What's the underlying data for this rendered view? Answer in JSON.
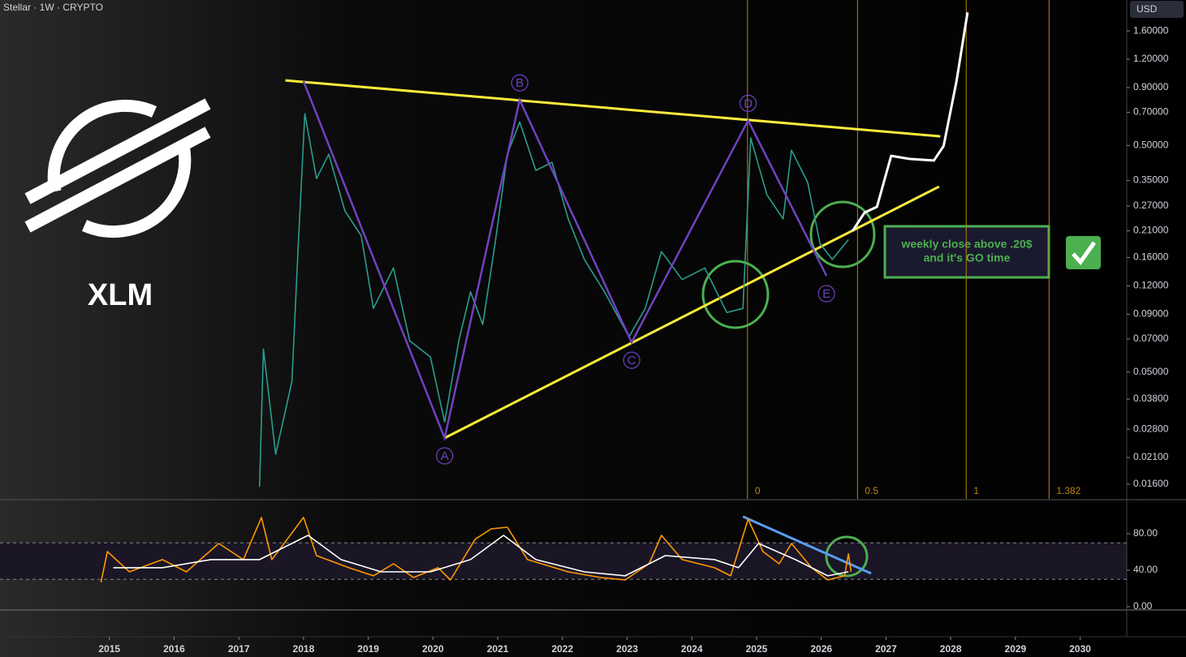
{
  "chart_data": [
    {
      "type": "line",
      "title": "Stellar · 1W · CRYPTO",
      "currency": "USD",
      "symbol": "XLM",
      "log_scale": true,
      "xlim": [
        2013.31,
        2030.72
      ],
      "ylim": [
        0.0138,
        2.19
      ],
      "xticks": [
        2015,
        2016,
        2017,
        2018,
        2019,
        2020,
        2021,
        2022,
        2023,
        2024,
        2025,
        2026,
        2027,
        2028,
        2029,
        2030
      ],
      "yticks": [
        {
          "value": 1.6,
          "label": "1.60000"
        },
        {
          "value": 1.2,
          "label": "1.20000"
        },
        {
          "value": 0.9,
          "label": "0.90000"
        },
        {
          "value": 0.7,
          "label": "0.70000"
        },
        {
          "value": 0.5,
          "label": "0.50000"
        },
        {
          "value": 0.35,
          "label": "0.35000"
        },
        {
          "value": 0.27,
          "label": "0.27000"
        },
        {
          "value": 0.21,
          "label": "0.21000"
        },
        {
          "value": 0.16,
          "label": "0.16000"
        },
        {
          "value": 0.12,
          "label": "0.12000"
        },
        {
          "value": 0.09,
          "label": "0.09000"
        },
        {
          "value": 0.07,
          "label": "0.07000"
        },
        {
          "value": 0.05,
          "label": "0.05000"
        },
        {
          "value": 0.038,
          "label": "0.03800"
        },
        {
          "value": 0.028,
          "label": "0.02800"
        },
        {
          "value": 0.021,
          "label": "0.02100"
        },
        {
          "value": 0.016,
          "label": "0.01600"
        }
      ],
      "series": [
        {
          "color": "#2a9d8f",
          "x": [
            2017.32,
            2017.38,
            2017.57,
            2017.82,
            2017.92,
            2018.02,
            2018.2,
            2018.39,
            2018.64,
            2018.89,
            2019.08,
            2019.39,
            2019.64,
            2019.96,
            2020.18,
            2020.4,
            2020.58,
            2020.77,
            2020.96,
            2021.15,
            2021.34,
            2021.59,
            2021.84,
            2022.09,
            2022.34,
            2022.65,
            2023.03,
            2023.28,
            2023.53,
            2023.85,
            2024.2,
            2024.54,
            2024.79,
            2024.91,
            2025.16,
            2025.41,
            2025.54,
            2025.79,
            2025.98,
            2026.17,
            2026.42
          ],
          "values": [
            0.0156,
            0.0632,
            0.0217,
            0.0455,
            0.185,
            0.69,
            0.357,
            0.457,
            0.257,
            0.2,
            0.0955,
            0.144,
            0.0687,
            0.0583,
            0.0301,
            0.0687,
            0.113,
            0.0811,
            0.185,
            0.457,
            0.635,
            0.388,
            0.421,
            0.237,
            0.157,
            0.113,
            0.0716,
            0.0955,
            0.17,
            0.128,
            0.144,
            0.0916,
            0.0955,
            0.539,
            0.303,
            0.237,
            0.476,
            0.343,
            0.185,
            0.157,
            0.192
          ]
        },
        {
          "color": "#ffffff",
          "x": [
            2026.48,
            2026.67,
            2026.86,
            2027.08,
            2027.36,
            2027.74,
            2027.89,
            2028.09,
            2028.26
          ],
          "values": [
            0.209,
            0.253,
            0.268,
            0.45,
            0.436,
            0.429,
            0.497,
            0.96,
            1.93
          ]
        }
      ],
      "pattern": {
        "color": "#6f42c1",
        "labels": [
          null,
          "A",
          "B",
          "C",
          "D",
          "E"
        ],
        "x": [
          2018.0,
          2020.18,
          2021.34,
          2023.07,
          2024.87,
          2026.08
        ],
        "values": [
          0.96,
          0.0256,
          0.794,
          0.0676,
          0.645,
          0.133
        ]
      },
      "trendlines": [
        {
          "color": "#ffeb3b",
          "x": [
            2017.72,
            2027.84
          ],
          "values": [
            0.968,
            0.548
          ]
        },
        {
          "color": "#ffeb3b",
          "x": [
            2020.18,
            2027.82
          ],
          "values": [
            0.0256,
            0.329
          ]
        }
      ],
      "fib_time": {
        "color": "#b8860b",
        "levels": [
          0,
          0.5,
          1,
          1.382
        ],
        "x": [
          2024.86,
          2026.56,
          2028.24,
          2029.52
        ]
      },
      "annotation": [
        "weekly close above .20$",
        "and it's GO time"
      ]
    },
    {
      "type": "line",
      "xlim": [
        2013.31,
        2030.72
      ],
      "ylim": [
        -3.6,
        116.4
      ],
      "yticks": [
        {
          "value": 0,
          "label": "0.00"
        },
        {
          "value": 40,
          "label": "40.00"
        },
        {
          "value": 80,
          "label": "80.00"
        }
      ],
      "bands": [
        30,
        70
      ],
      "series": [
        {
          "color": "#ff9800",
          "x": [
            2014.87,
            2014.97,
            2015.31,
            2015.82,
            2016.19,
            2016.69,
            2017.07,
            2017.35,
            2017.51,
            2017.7,
            2018.0,
            2018.2,
            2018.7,
            2019.08,
            2019.39,
            2019.7,
            2020.08,
            2020.27,
            2020.65,
            2020.9,
            2021.15,
            2021.46,
            2022.09,
            2022.59,
            2022.97,
            2023.34,
            2023.53,
            2023.85,
            2024.35,
            2024.6,
            2024.87,
            2025.1,
            2025.35,
            2025.54,
            2025.85,
            2026.1,
            2026.36,
            2026.42,
            2026.46
          ],
          "values": [
            26.7,
            60.4,
            38.2,
            51.6,
            38.2,
            69.3,
            51.6,
            97.8,
            51.6,
            69.3,
            97.8,
            56,
            42.7,
            33.8,
            47.1,
            32,
            42.7,
            29.3,
            73.8,
            85.3,
            87.1,
            51.6,
            38.2,
            32,
            29.3,
            47.1,
            78.2,
            51.6,
            42.7,
            33.8,
            96,
            60.4,
            47.1,
            69.3,
            42.7,
            29.3,
            33.8,
            57.8,
            38.2
          ]
        },
        {
          "color": "#ffffff",
          "x": [
            2015.06,
            2015.82,
            2016.57,
            2017.32,
            2018.07,
            2018.58,
            2019.2,
            2019.96,
            2020.58,
            2021.09,
            2021.59,
            2022.34,
            2022.97,
            2023.59,
            2024.35,
            2024.72,
            2025.03,
            2025.6,
            2026.1,
            2026.42
          ],
          "values": [
            42.7,
            42.7,
            51.6,
            51.6,
            78.2,
            51.6,
            38.2,
            38.2,
            51.6,
            78.2,
            51.6,
            38.2,
            33.8,
            56,
            51.6,
            42.7,
            69.3,
            51.6,
            33.8,
            38.2
          ]
        }
      ],
      "trendlines": [
        {
          "color": "#5b9cf0",
          "x": [
            2024.79,
            2026.77
          ],
          "values": [
            98.7,
            36.4
          ]
        }
      ]
    }
  ]
}
